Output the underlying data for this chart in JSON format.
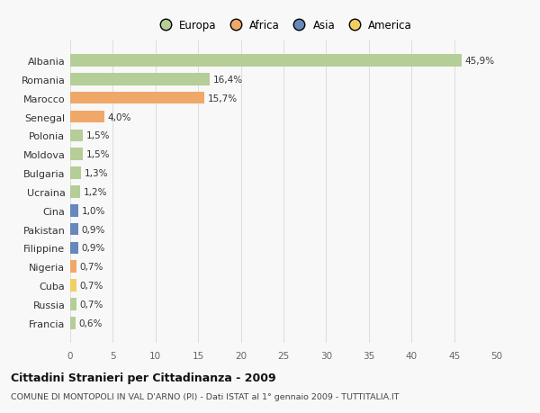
{
  "categories": [
    "Francia",
    "Russia",
    "Cuba",
    "Nigeria",
    "Filippine",
    "Pakistan",
    "Cina",
    "Ucraina",
    "Bulgaria",
    "Moldova",
    "Polonia",
    "Senegal",
    "Marocco",
    "Romania",
    "Albania"
  ],
  "values": [
    0.6,
    0.7,
    0.7,
    0.7,
    0.9,
    0.9,
    1.0,
    1.2,
    1.3,
    1.5,
    1.5,
    4.0,
    15.7,
    16.4,
    45.9
  ],
  "labels": [
    "0,6%",
    "0,7%",
    "0,7%",
    "0,7%",
    "0,9%",
    "0,9%",
    "1,0%",
    "1,2%",
    "1,3%",
    "1,5%",
    "1,5%",
    "4,0%",
    "15,7%",
    "16,4%",
    "45,9%"
  ],
  "colors": [
    "#b5cd96",
    "#b5cd96",
    "#f0d060",
    "#f0a868",
    "#6688bb",
    "#6688bb",
    "#6688bb",
    "#b5cd96",
    "#b5cd96",
    "#b5cd96",
    "#b5cd96",
    "#f0a868",
    "#f0a868",
    "#b5cd96",
    "#b5cd96"
  ],
  "legend_labels": [
    "Europa",
    "Africa",
    "Asia",
    "America"
  ],
  "legend_colors": [
    "#b5cd96",
    "#f0a868",
    "#6688bb",
    "#f0d060"
  ],
  "title": "Cittadini Stranieri per Cittadinanza - 2009",
  "subtitle": "COMUNE DI MONTOPOLI IN VAL D'ARNO (PI) - Dati ISTAT al 1° gennaio 2009 - TUTTITALIA.IT",
  "xlim": [
    0,
    50
  ],
  "xticks": [
    0,
    5,
    10,
    15,
    20,
    25,
    30,
    35,
    40,
    45,
    50
  ],
  "bg_color": "#f8f8f8",
  "grid_color": "#dddddd",
  "bar_height": 0.65
}
